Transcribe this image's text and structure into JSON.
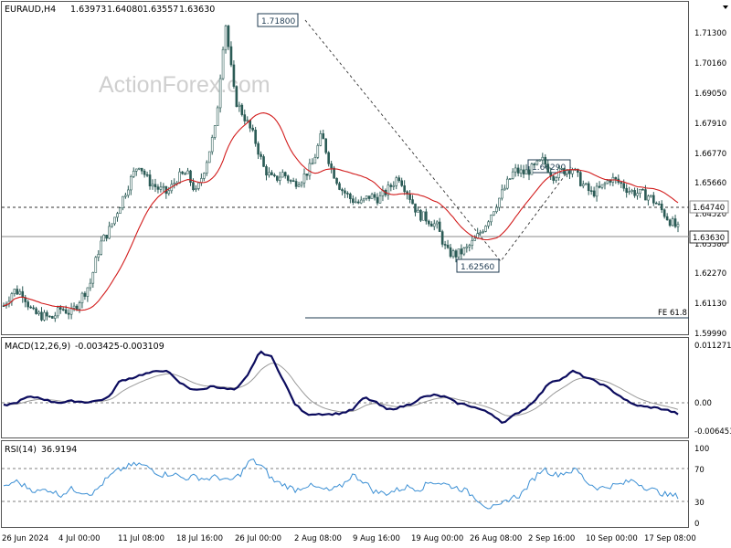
{
  "watermark": "ActionForex.com",
  "chart_data": [
    {
      "type": "candlestick",
      "header": {
        "symbol": "EURAUD,H4",
        "ohlc": [
          "1.63973",
          "1.64080",
          "1.63557",
          "1.63630"
        ]
      },
      "ylim": [
        1.5955,
        1.7245
      ],
      "y_ticks": [
        "1.71300",
        "1.70160",
        "1.69050",
        "1.67910",
        "1.66770",
        "1.65660",
        "1.64520",
        "1.63380",
        "1.62270",
        "1.61130",
        "1.59990"
      ],
      "x_ticks": [
        "26 Jun 2024",
        "4 Jul 00:00",
        "11 Jul 08:00",
        "18 Jul 16:00",
        "26 Jul 00:00",
        "2 Aug 08:00",
        "9 Aug 16:00",
        "19 Aug 00:00",
        "26 Aug 08:00",
        "2 Sep 16:00",
        "10 Sep 00:00",
        "17 Sep 08:00"
      ],
      "current_price": "1.63630",
      "levels": [
        {
          "label": "1.64740",
          "value": 1.6474,
          "style": "dashed"
        }
      ],
      "fib_label": "FE 61.8",
      "fib_value": 1.6032,
      "swing_labels": [
        {
          "text": "1.71800",
          "value": 1.718
        },
        {
          "text": "1.62560",
          "value": 1.6256
        },
        {
          "text": "1.66290",
          "value": 1.6629
        }
      ],
      "price_path": [
        1.606,
        1.612,
        1.611,
        1.603,
        1.602,
        1.601,
        1.605,
        1.603,
        1.609,
        1.615,
        1.63,
        1.636,
        1.645,
        1.654,
        1.662,
        1.655,
        1.652,
        1.65,
        1.656,
        1.658,
        1.65,
        1.662,
        1.676,
        1.718,
        1.687,
        1.68,
        1.672,
        1.66,
        1.655,
        1.658,
        1.654,
        1.656,
        1.661,
        1.673,
        1.66,
        1.652,
        1.648,
        1.646,
        1.649,
        1.648,
        1.652,
        1.657,
        1.65,
        1.642,
        1.64,
        1.637,
        1.627,
        1.626,
        1.628,
        1.632,
        1.638,
        1.645,
        1.652,
        1.659,
        1.658,
        1.66,
        1.663,
        1.657,
        1.659,
        1.66,
        1.654,
        1.65,
        1.652,
        1.656,
        1.654,
        1.651,
        1.65,
        1.649,
        1.645,
        1.64,
        1.636
      ]
    },
    {
      "type": "line",
      "header": {
        "name": "MACD(12,26,9)",
        "values": [
          "-0.003425",
          "-0.003109"
        ]
      },
      "y_ticks": [
        "0.011271",
        "0.00",
        "-0.006453"
      ],
      "ylim": [
        -0.0085,
        0.0132
      ],
      "macd_path": [
        -0.0015,
        -0.001,
        0.0003,
        0.0003,
        -0.0006,
        -0.0009,
        -0.0005,
        -0.0008,
        -0.0005,
        0.0002,
        0.004,
        0.0046,
        0.0055,
        0.006,
        0.0064,
        0.0038,
        0.0023,
        0.0019,
        0.0029,
        0.0022,
        0.002,
        0.0052,
        0.0105,
        0.0095,
        0.0045,
        -0.001,
        -0.0035,
        -0.0034,
        -0.0035,
        -0.0033,
        -0.0025,
        0.0003,
        -0.0008,
        -0.0025,
        -0.002,
        -0.0012,
        0.0003,
        0.0008,
        0.0004,
        -0.001,
        -0.0015,
        -0.0024,
        -0.0035,
        -0.0055,
        -0.0035,
        -0.002,
        0.0005,
        0.0038,
        0.0044,
        0.0062,
        0.0048,
        0.0038,
        0.0024,
        0.0006,
        -0.0012,
        -0.0018,
        -0.002,
        -0.0025,
        -0.0034
      ]
    },
    {
      "type": "line",
      "header": {
        "name": "RSI(14)",
        "value": "36.9194"
      },
      "y_ticks": [
        "100",
        "70",
        "30",
        "0"
      ],
      "ylim": [
        0,
        100
      ],
      "rsi_path": [
        46,
        55,
        48,
        42,
        45,
        38,
        45,
        42,
        40,
        55,
        66,
        72,
        75,
        70,
        62,
        64,
        58,
        60,
        57,
        60,
        54,
        62,
        80,
        72,
        55,
        50,
        44,
        50,
        46,
        43,
        48,
        62,
        55,
        42,
        40,
        44,
        48,
        45,
        54,
        52,
        48,
        44,
        35,
        24,
        23,
        34,
        38,
        55,
        70,
        62,
        65,
        68,
        52,
        46,
        49,
        51,
        56,
        48,
        43,
        38,
        37
      ]
    }
  ]
}
